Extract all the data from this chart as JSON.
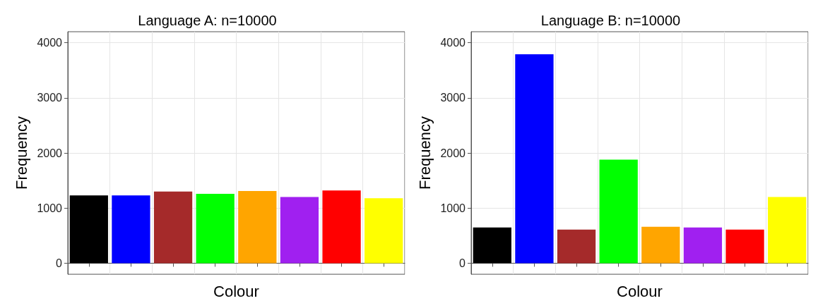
{
  "chart_data": [
    {
      "type": "bar",
      "title": "Language A: n=10000",
      "xlabel": "Colour",
      "ylabel": "Frequency",
      "categories": [
        null,
        null,
        null,
        null,
        null,
        null,
        null,
        null
      ],
      "values": [
        1230,
        1230,
        1300,
        1260,
        1310,
        1200,
        1320,
        1180
      ],
      "colors": [
        "#000000",
        "#0000ff",
        "#a52a2a",
        "#00ff00",
        "#ffa500",
        "#a020f0",
        "#ff0000",
        "#ffff00"
      ],
      "ylim": [
        -200,
        4200
      ],
      "yticks": [
        0,
        1000,
        2000,
        3000,
        4000
      ],
      "grid": true
    },
    {
      "type": "bar",
      "title": "Language B: n=10000",
      "xlabel": "Colour",
      "ylabel": "Frequency",
      "categories": [
        null,
        null,
        null,
        null,
        null,
        null,
        null,
        null
      ],
      "values": [
        650,
        3790,
        610,
        1880,
        660,
        650,
        610,
        1200
      ],
      "colors": [
        "#000000",
        "#0000ff",
        "#a52a2a",
        "#00ff00",
        "#ffa500",
        "#a020f0",
        "#ff0000",
        "#ffff00"
      ],
      "ylim": [
        -200,
        4200
      ],
      "yticks": [
        0,
        1000,
        2000,
        3000,
        4000
      ],
      "grid": true
    }
  ]
}
